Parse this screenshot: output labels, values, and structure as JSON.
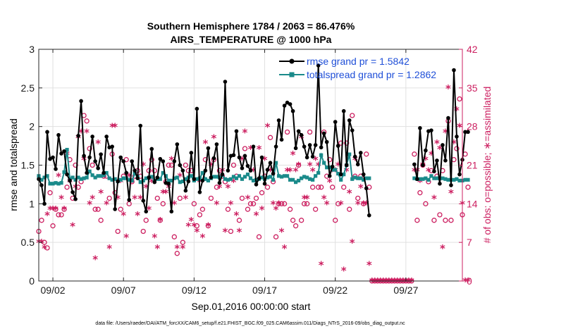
{
  "chart_data": {
    "type": "line",
    "title_line1": "Southern Hemisphere 1784 / 2063 = 86.476%",
    "title_line2": "AIRS_TEMPERATURE @ 1000 hPa",
    "xlabel": "Sep.01,2016 00:00:00 start",
    "ylabel_left": "rmse and totalspread",
    "ylabel_right": "# of obs: o=possible; ∗=assimilated",
    "footnote": "data file: /Users/raeder/DAI/ATM_forcXX/CAM6_setup/f.e21.FHIST_BGC.f09_025.CAM6assim.011/Diags_NTrS_2016-09/obs_diag_output.nc",
    "x_tick_labels": [
      "09/02",
      "09/07",
      "09/12",
      "09/17",
      "09/22",
      "09/27"
    ],
    "x_tick_days": [
      2,
      7,
      12,
      17,
      22,
      27
    ],
    "xlim": [
      1,
      31
    ],
    "y_left_ticks": [
      "0",
      "0.5",
      "1",
      "1.5",
      "2",
      "2.5",
      "3"
    ],
    "y_left_lim": [
      0,
      3
    ],
    "y_right_ticks": [
      "0",
      "7",
      "14",
      "21",
      "28",
      "35",
      "42"
    ],
    "y_right_lim": [
      0,
      42
    ],
    "colors": {
      "rmse": "#000000",
      "spread": "#1a8a8a",
      "obs": "#cc1f60",
      "grid": "#e0e0e0"
    },
    "series": [
      {
        "name": "rmse grand pr = 1.5842",
        "values": [
          1.32,
          1.24,
          1.0,
          1.93,
          1.58,
          1.6,
          1.45,
          1.89,
          1.65,
          1.68,
          1.38,
          1.3,
          1.15,
          1.06,
          1.88,
          2.33,
          1.62,
          1.4,
          1.6,
          1.87,
          1.55,
          1.46,
          1.64,
          1.4,
          1.87,
          1.73,
          1.74,
          0.93,
          1.29,
          1.6,
          1.55,
          1.4,
          1.05,
          1.55,
          1.43,
          1.33,
          2.01,
          1.04,
          0.9,
          1.34,
          1.71,
          1.28,
          1.34,
          1.58,
          1.55,
          1.27,
          1.26,
          0.9,
          1.55,
          1.77,
          1.5,
          1.43,
          1.17,
          1.29,
          1.66,
          1.32,
          2.23,
          1.15,
          1.3,
          1.43,
          1.72,
          1.34,
          1.59,
          1.77,
          1.27,
          1.38,
          2.58,
          1.43,
          1.62,
          1.63,
          1.94,
          1.6,
          1.46,
          1.62,
          1.49,
          1.43,
          1.74,
          1.25,
          1.33,
          1.6,
          1.26,
          1.44,
          1.53,
          1.39,
          1.74,
          2.08,
          1.83,
          2.27,
          2.31,
          2.29,
          2.2,
          1.72,
          1.94,
          1.89,
          1.74,
          1.6,
          1.76,
          1.61,
          1.76,
          2.79,
          1.73,
          1.91,
          1.8,
          1.36,
          1.48,
          2.06,
          1.75,
          1.38,
          2.2,
          1.5,
          2.08,
          1.95,
          1.61,
          1.51,
          1.66,
          1.38,
          1.2,
          0.85,
          null,
          null,
          null,
          null,
          null,
          null,
          null,
          null,
          null,
          null,
          null,
          null,
          null,
          null,
          null,
          1.51,
          1.32,
          1.98,
          1.5,
          1.69,
          1.94,
          1.95,
          1.42,
          1.56,
          1.26,
          1.76,
          1.56,
          2.11,
          1.24,
          2.73,
          1.87,
          1.38,
          1.57,
          1.93,
          1.93
        ],
        "marker": "circle"
      },
      {
        "name": "totalspread grand pr = 1.2862",
        "values": [
          1.36,
          1.31,
          1.34,
          1.36,
          1.26,
          1.26,
          1.27,
          1.26,
          1.27,
          1.41,
          1.7,
          1.32,
          1.34,
          1.31,
          1.34,
          1.32,
          1.33,
          1.34,
          1.42,
          1.37,
          1.34,
          1.36,
          1.36,
          1.37,
          1.4,
          1.33,
          1.31,
          1.32,
          1.29,
          1.31,
          1.33,
          1.33,
          1.31,
          1.3,
          1.39,
          1.35,
          1.28,
          1.3,
          1.33,
          1.34,
          1.35,
          1.3,
          1.32,
          1.32,
          1.4,
          1.36,
          1.3,
          1.3,
          1.33,
          1.34,
          1.28,
          1.29,
          1.32,
          1.34,
          1.36,
          1.3,
          1.32,
          1.33,
          1.4,
          1.32,
          1.3,
          1.33,
          1.35,
          1.35,
          1.34,
          1.37,
          1.32,
          1.31,
          1.32,
          1.35,
          1.33,
          1.36,
          1.32,
          1.35,
          1.38,
          1.33,
          1.3,
          1.31,
          1.32,
          1.34,
          1.32,
          1.34,
          1.35,
          1.31,
          1.53,
          1.36,
          1.35,
          1.36,
          1.36,
          1.31,
          1.31,
          1.28,
          1.3,
          1.33,
          1.35,
          1.34,
          1.32,
          1.31,
          1.36,
          1.4,
          1.63,
          1.53,
          1.47,
          1.47,
          1.44,
          1.44,
          1.39,
          1.31,
          1.38,
          1.5,
          1.64,
          1.32,
          1.34,
          1.33,
          1.33,
          1.31,
          1.33,
          1.33,
          null,
          null,
          null,
          null,
          null,
          null,
          null,
          null,
          null,
          null,
          null,
          null,
          null,
          null,
          null,
          1.33,
          1.32,
          1.32,
          1.32,
          1.33,
          1.31,
          1.36,
          1.33,
          1.33,
          1.33,
          1.33,
          1.32,
          1.31,
          1.31,
          1.31,
          1.32,
          1.3,
          1.3,
          1.31,
          1.31
        ],
        "marker": "square"
      }
    ],
    "obs_series": [
      {
        "name": "possible",
        "marker": "o",
        "values": [
          9,
          11,
          7,
          6,
          16,
          10,
          13,
          12,
          12,
          13,
          17,
          22,
          15,
          21,
          17,
          18,
          30,
          29,
          24,
          21,
          13,
          13,
          11,
          19,
          19,
          15,
          23,
          16,
          9,
          13,
          19,
          22,
          14,
          18,
          19,
          20,
          19,
          9,
          11,
          20,
          22,
          20,
          15,
          11,
          14,
          18,
          21,
          21,
          8,
          5,
          15,
          7,
          21,
          20,
          20,
          14,
          10,
          12,
          13,
          22,
          10,
          15,
          22,
          17,
          20,
          19,
          18,
          13,
          9,
          21,
          19,
          11,
          15,
          24,
          13,
          14,
          14,
          15,
          8,
          16,
          19,
          17,
          26,
          18,
          8,
          14,
          14,
          14,
          27,
          13,
          11,
          10,
          21,
          11,
          14,
          14,
          27,
          17,
          13,
          17,
          17,
          27,
          19,
          22,
          17,
          11,
          14,
          25,
          17,
          25,
          13,
          30,
          19,
          15,
          19,
          14,
          23,
          17,
          0,
          0,
          0,
          0,
          0,
          0,
          0,
          0,
          0,
          0,
          0,
          0,
          0,
          0,
          0,
          23,
          11,
          16,
          21,
          14,
          18,
          20,
          11,
          19,
          12,
          20,
          11,
          29,
          11,
          22,
          24,
          33,
          12,
          23,
          17
        ]
      },
      {
        "name": "assimilated",
        "marker": "*",
        "values": [
          7,
          7,
          6,
          12,
          13,
          13,
          13,
          19,
          15,
          13,
          23,
          18,
          10,
          17,
          26,
          27,
          22,
          27,
          14,
          15,
          4,
          25,
          16,
          19,
          14,
          6,
          28,
          28,
          15,
          18,
          12,
          8,
          19,
          18,
          15,
          12,
          15,
          21,
          17,
          13,
          18,
          8,
          6,
          11,
          16,
          16,
          17,
          22,
          14,
          6,
          19,
          6,
          15,
          10,
          11,
          10,
          9,
          18,
          8,
          25,
          10,
          21,
          26,
          14,
          17,
          20,
          9,
          17,
          14,
          18,
          12,
          9,
          22,
          27,
          15,
          24,
          20,
          12,
          24,
          13,
          22,
          28,
          20,
          14,
          13,
          14,
          9,
          6,
          20,
          20,
          23,
          20,
          21,
          26,
          15,
          15,
          21,
          20,
          22,
          21,
          3,
          15,
          14,
          18,
          20,
          20,
          21,
          14,
          2,
          20,
          16,
          7,
          22,
          14,
          17,
          14,
          14,
          3,
          0,
          0,
          0,
          0,
          0,
          0,
          0,
          0,
          0,
          0,
          0,
          0,
          0,
          0,
          0,
          20,
          20,
          18,
          21,
          22,
          20,
          23,
          15,
          25,
          24,
          6,
          27,
          35,
          16,
          25,
          31,
          28,
          14,
          0,
          0
        ]
      }
    ],
    "x_start_day": 1,
    "x_step_days": 0.2,
    "legend": [
      "rmse grand pr = 1.5842",
      "totalspread grand pr = 1.2862"
    ]
  }
}
